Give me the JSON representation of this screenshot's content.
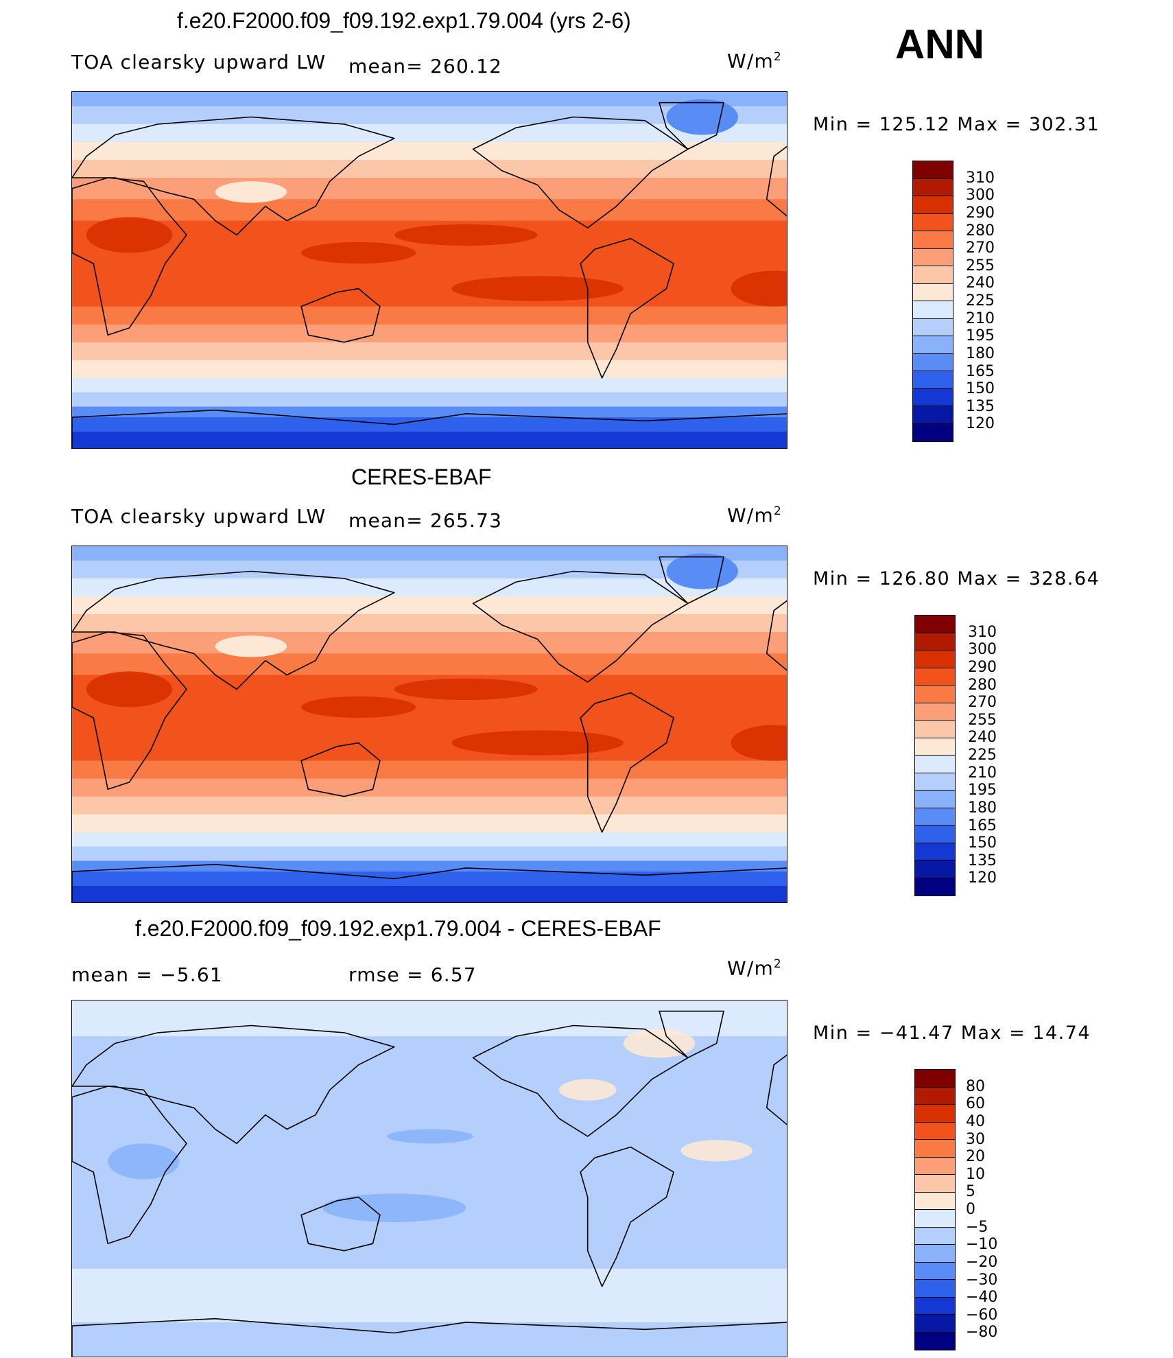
{
  "season": "ANN",
  "units": "W/m",
  "units_sup": "2",
  "panels": [
    {
      "title": "f.e20.F2000.f09_f09.192.exp1.79.004 (yrs 2-6)",
      "variable": "TOA clearsky upward LW",
      "stat_text": "mean=  260.12",
      "minmax": "Min  =  125.12  Max  =  302.31",
      "colorbar_labels": [
        "310",
        "300",
        "290",
        "280",
        "270",
        "255",
        "240",
        "225",
        "210",
        "195",
        "180",
        "165",
        "150",
        "135",
        "120"
      ],
      "colors": [
        "#7f0000",
        "#b21a00",
        "#d93000",
        "#f2521c",
        "#fa7a45",
        "#fc9e77",
        "#fcc7a8",
        "#fde8d6",
        "#dbeafd",
        "#b4cffc",
        "#8ab2fb",
        "#5a8cf5",
        "#2f62ec",
        "#1338d4",
        "#0818a6",
        "#000080"
      ],
      "style": "model"
    },
    {
      "title": "CERES-EBAF",
      "variable": "TOA clearsky upward LW",
      "stat_text": "mean=  265.73",
      "minmax": "Min  =  126.80  Max  =  328.64",
      "colorbar_labels": [
        "310",
        "300",
        "290",
        "280",
        "270",
        "255",
        "240",
        "225",
        "210",
        "195",
        "180",
        "165",
        "150",
        "135",
        "120"
      ],
      "colors": [
        "#7f0000",
        "#b21a00",
        "#d93000",
        "#f2521c",
        "#fa7a45",
        "#fc9e77",
        "#fcc7a8",
        "#fde8d6",
        "#dbeafd",
        "#b4cffc",
        "#8ab2fb",
        "#5a8cf5",
        "#2f62ec",
        "#1338d4",
        "#0818a6",
        "#000080"
      ],
      "style": "obs"
    },
    {
      "title": "f.e20.F2000.f09_f09.192.exp1.79.004 - CERES-EBAF",
      "stat_mean": "mean  =    −5.61",
      "stat_rmse": "rmse  =     6.57",
      "minmax": "Min  =  −41.47  Max  =    14.74",
      "colorbar_labels": [
        "80",
        "60",
        "40",
        "30",
        "20",
        "10",
        "5",
        "0",
        "−5",
        "−10",
        "−20",
        "−30",
        "−40",
        "−60",
        "−80"
      ],
      "colors": [
        "#7f0000",
        "#b21a00",
        "#d93000",
        "#f2521c",
        "#fa7a45",
        "#fc9e77",
        "#fcc7a8",
        "#fde8d6",
        "#dbeafd",
        "#b4cffc",
        "#8ab2fb",
        "#5a8cf5",
        "#2f62ec",
        "#1338d4",
        "#0818a6",
        "#000080"
      ],
      "style": "diff"
    }
  ]
}
